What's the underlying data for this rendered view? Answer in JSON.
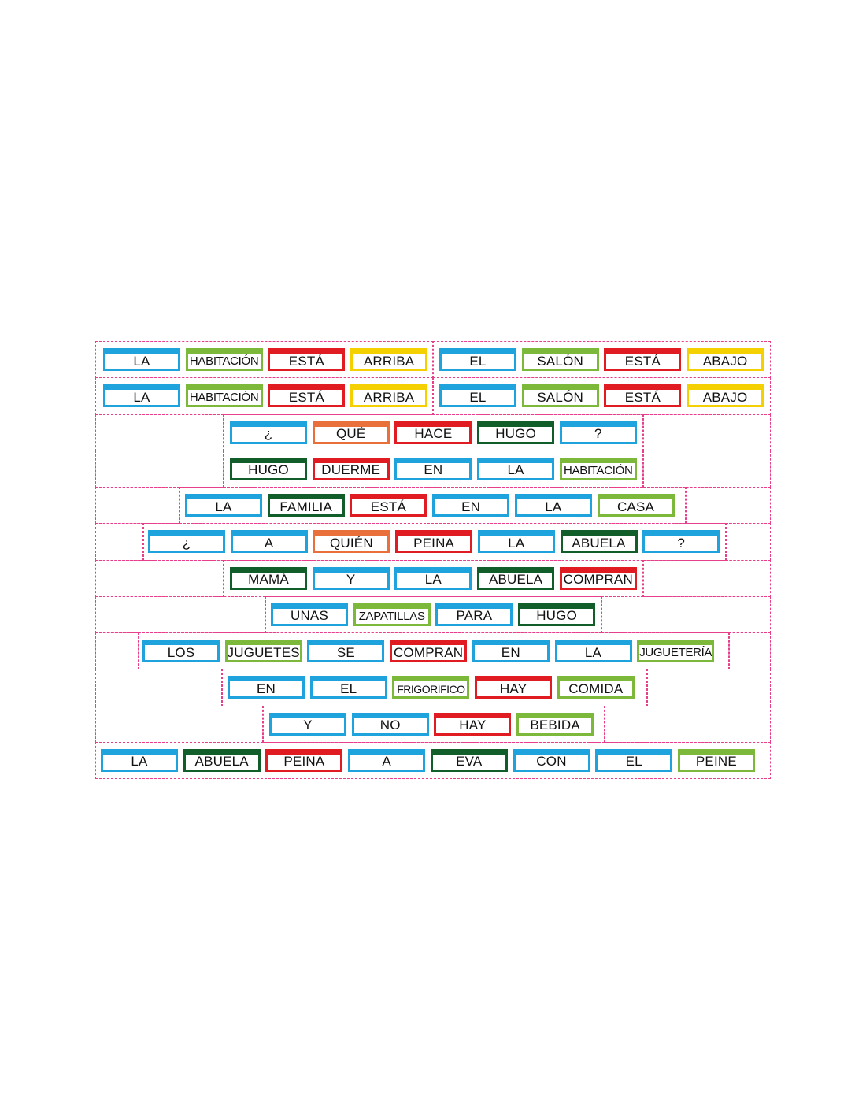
{
  "colors": {
    "blue": "#1ea3dc",
    "lightgreen": "#7cb83a",
    "red": "#e11b22",
    "yellow": "#f4d000",
    "orange": "#e9703a",
    "darkgreen": "#115e2b",
    "cut_line": "#e83e8c"
  },
  "rows": [
    {
      "words": [
        {
          "text": "LA",
          "color": "blue"
        },
        {
          "text": "HABITACIÓN",
          "color": "lightgreen"
        },
        {
          "text": "ESTÁ",
          "color": "red"
        },
        {
          "text": "ARRIBA",
          "color": "yellow"
        },
        {
          "text": "EL",
          "color": "blue"
        },
        {
          "text": "SALÓN",
          "color": "lightgreen"
        },
        {
          "text": "ESTÁ",
          "color": "red"
        },
        {
          "text": "ABAJO",
          "color": "yellow"
        }
      ]
    },
    {
      "words": [
        {
          "text": "LA",
          "color": "blue"
        },
        {
          "text": "HABITACIÓN",
          "color": "lightgreen"
        },
        {
          "text": "ESTÁ",
          "color": "red"
        },
        {
          "text": "ARRIBA",
          "color": "yellow"
        },
        {
          "text": "EL",
          "color": "blue"
        },
        {
          "text": "SALÓN",
          "color": "lightgreen"
        },
        {
          "text": "ESTÁ",
          "color": "red"
        },
        {
          "text": "ABAJO",
          "color": "yellow"
        }
      ]
    },
    {
      "words": [
        {
          "text": "¿",
          "color": "blue"
        },
        {
          "text": "QUÉ",
          "color": "orange"
        },
        {
          "text": "HACE",
          "color": "red"
        },
        {
          "text": "HUGO",
          "color": "darkgreen"
        },
        {
          "text": "?",
          "color": "blue"
        }
      ]
    },
    {
      "words": [
        {
          "text": "HUGO",
          "color": "darkgreen"
        },
        {
          "text": "DUERME",
          "color": "red"
        },
        {
          "text": "EN",
          "color": "blue"
        },
        {
          "text": "LA",
          "color": "blue"
        },
        {
          "text": "HABITACIÓN",
          "color": "lightgreen"
        }
      ]
    },
    {
      "words": [
        {
          "text": "LA",
          "color": "blue"
        },
        {
          "text": "FAMILIA",
          "color": "darkgreen"
        },
        {
          "text": "ESTÁ",
          "color": "red"
        },
        {
          "text": "EN",
          "color": "blue"
        },
        {
          "text": "LA",
          "color": "blue"
        },
        {
          "text": "CASA",
          "color": "lightgreen"
        }
      ]
    },
    {
      "words": [
        {
          "text": "¿",
          "color": "blue"
        },
        {
          "text": "A",
          "color": "blue"
        },
        {
          "text": "QUIÉN",
          "color": "orange"
        },
        {
          "text": "PEINA",
          "color": "red"
        },
        {
          "text": "LA",
          "color": "blue"
        },
        {
          "text": "ABUELA",
          "color": "darkgreen"
        },
        {
          "text": "?",
          "color": "blue"
        }
      ]
    },
    {
      "words": [
        {
          "text": "MAMÁ",
          "color": "darkgreen"
        },
        {
          "text": "Y",
          "color": "blue"
        },
        {
          "text": "LA",
          "color": "blue"
        },
        {
          "text": "ABUELA",
          "color": "darkgreen"
        },
        {
          "text": "COMPRAN",
          "color": "red"
        }
      ]
    },
    {
      "words": [
        {
          "text": "UNAS",
          "color": "blue"
        },
        {
          "text": "ZAPATILLAS",
          "color": "lightgreen"
        },
        {
          "text": "PARA",
          "color": "blue"
        },
        {
          "text": "HUGO",
          "color": "darkgreen"
        }
      ]
    },
    {
      "words": [
        {
          "text": "LOS",
          "color": "blue"
        },
        {
          "text": "JUGUETES",
          "color": "lightgreen"
        },
        {
          "text": "SE",
          "color": "blue"
        },
        {
          "text": "COMPRAN",
          "color": "red"
        },
        {
          "text": "EN",
          "color": "blue"
        },
        {
          "text": "LA",
          "color": "blue"
        },
        {
          "text": "JUGUETERÍA",
          "color": "lightgreen"
        }
      ]
    },
    {
      "words": [
        {
          "text": "EN",
          "color": "blue"
        },
        {
          "text": "EL",
          "color": "blue"
        },
        {
          "text": "FRIGORÍFICO",
          "color": "lightgreen"
        },
        {
          "text": "HAY",
          "color": "red"
        },
        {
          "text": "COMIDA",
          "color": "lightgreen"
        }
      ]
    },
    {
      "words": [
        {
          "text": "Y",
          "color": "blue"
        },
        {
          "text": "NO",
          "color": "blue"
        },
        {
          "text": "HAY",
          "color": "red"
        },
        {
          "text": "BEBIDA",
          "color": "lightgreen"
        }
      ]
    },
    {
      "words": [
        {
          "text": "LA",
          "color": "blue"
        },
        {
          "text": "ABUELA",
          "color": "darkgreen"
        },
        {
          "text": "PEINA",
          "color": "red"
        },
        {
          "text": "A",
          "color": "blue"
        },
        {
          "text": "EVA",
          "color": "darkgreen"
        },
        {
          "text": "CON",
          "color": "blue"
        },
        {
          "text": "EL",
          "color": "blue"
        },
        {
          "text": "PEINE",
          "color": "lightgreen"
        }
      ]
    }
  ]
}
